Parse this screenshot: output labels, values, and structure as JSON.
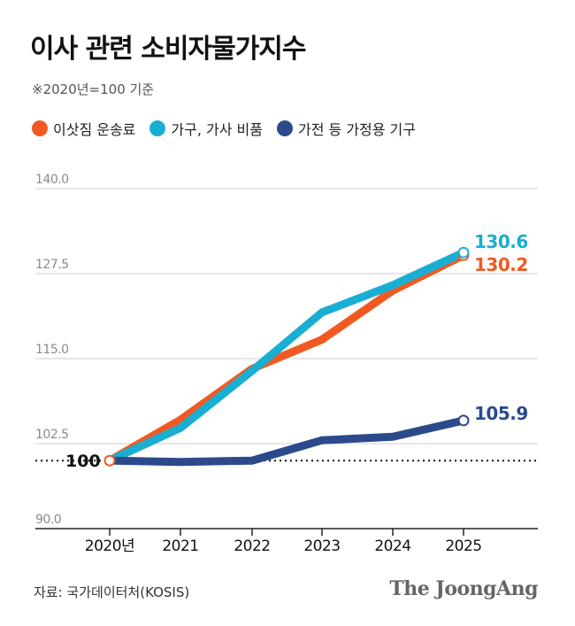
{
  "header": {
    "title": "이사 관련 소비자물가지수",
    "subtitle": "※2020년=100 기준"
  },
  "footer": {
    "source": "자료: 국가데이터처(KOSIS)",
    "brand": "The JoongAng"
  },
  "colors": {
    "moving": "#f05a22",
    "furniture": "#1aaed3",
    "appliance": "#2b4a8c",
    "grid": "#cfcfcf",
    "axis": "#222222",
    "tick": "#8a8a8a"
  },
  "chart_data": {
    "type": "line",
    "categories": [
      "2020년",
      "2021",
      "2022",
      "2023",
      "2024",
      "2025"
    ],
    "ylim": [
      90.0,
      140.0
    ],
    "y_ticks": [
      "90.0",
      "102.5",
      "115.0",
      "127.5",
      "140.0"
    ],
    "baseline": 100,
    "baseline_label": "100",
    "grid": true,
    "legend_position": "top-left",
    "series": [
      {
        "name": "이삿짐 운송료",
        "color_key": "moving",
        "values": [
          100,
          106.0,
          113.5,
          117.8,
          125.0,
          130.2
        ],
        "end_label": "130.2"
      },
      {
        "name": "가구, 가사 비품",
        "color_key": "furniture",
        "values": [
          100,
          104.8,
          113.2,
          121.8,
          125.8,
          130.6
        ],
        "end_label": "130.6"
      },
      {
        "name": "가전 등 가정용 기구",
        "color_key": "appliance",
        "values": [
          100,
          99.8,
          100.0,
          103.0,
          103.5,
          105.9
        ],
        "end_label": "105.9"
      }
    ]
  }
}
